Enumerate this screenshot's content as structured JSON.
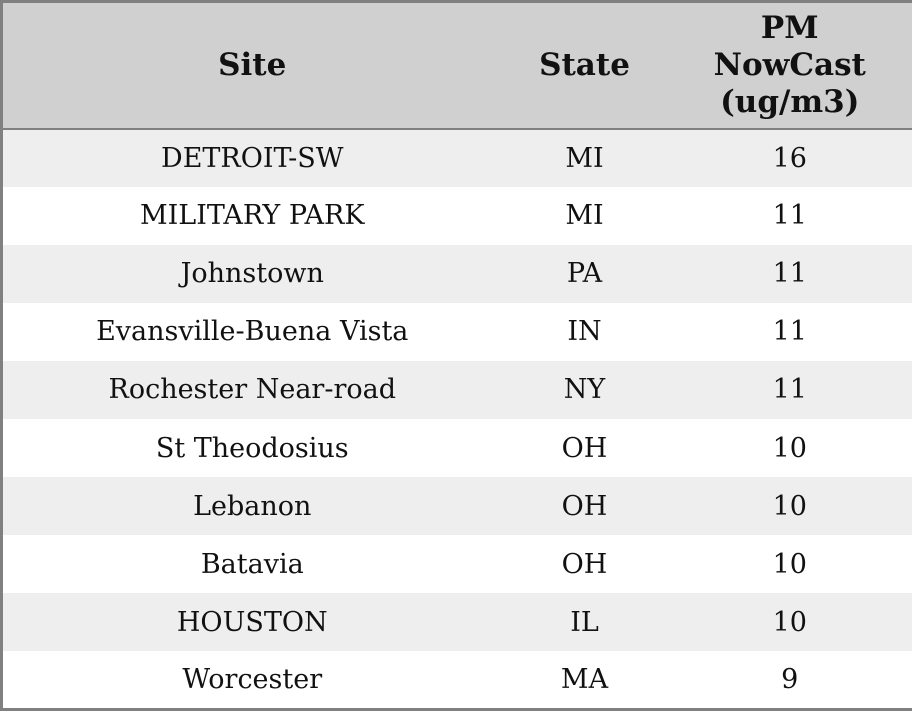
{
  "colors": {
    "header_bg": "#d0d0d0",
    "row_odd_bg": "#eeeeee",
    "row_even_bg": "#ffffff",
    "border": "#808080",
    "text": "#111111"
  },
  "table": {
    "columns": [
      "Site",
      "State",
      "PM\nNowCast\n(ug/m3)"
    ],
    "rows": [
      [
        "DETROIT-SW",
        "MI",
        "16"
      ],
      [
        "MILITARY PARK",
        "MI",
        "11"
      ],
      [
        "Johnstown",
        "PA",
        "11"
      ],
      [
        "Evansville-Buena Vista",
        "IN",
        "11"
      ],
      [
        "Rochester Near-road",
        "NY",
        "11"
      ],
      [
        "St Theodosius",
        "OH",
        "10"
      ],
      [
        "Lebanon",
        "OH",
        "10"
      ],
      [
        "Batavia",
        "OH",
        "10"
      ],
      [
        "HOUSTON",
        "IL",
        "10"
      ],
      [
        "Worcester",
        "MA",
        "9"
      ]
    ]
  },
  "chart_data": {
    "type": "table",
    "title": "",
    "columns": [
      "Site",
      "State",
      "PM NowCast (ug/m3)"
    ],
    "categories": [
      "DETROIT-SW",
      "MILITARY PARK",
      "Johnstown",
      "Evansville-Buena Vista",
      "Rochester Near-road",
      "St Theodosius",
      "Lebanon",
      "Batavia",
      "HOUSTON",
      "Worcester"
    ],
    "series": [
      {
        "name": "State",
        "values": [
          "MI",
          "MI",
          "PA",
          "IN",
          "NY",
          "OH",
          "OH",
          "OH",
          "IL",
          "MA"
        ]
      },
      {
        "name": "PM NowCast (ug/m3)",
        "values": [
          16,
          11,
          11,
          11,
          11,
          10,
          10,
          10,
          10,
          9
        ]
      }
    ]
  }
}
